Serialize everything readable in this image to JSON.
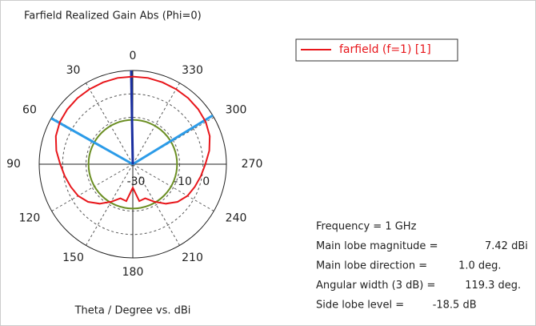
{
  "chart_data": {
    "type": "polar",
    "title": "Farfield Realized Gain Abs (Phi=0)",
    "axis_label": "Theta / Degree vs. dBi",
    "rlim": [
      -30,
      10
    ],
    "rticks": [
      -30,
      -10,
      0
    ],
    "thetaticks": [
      0,
      30,
      60,
      90,
      120,
      150,
      180,
      210,
      240,
      270,
      300,
      330
    ],
    "grid": true,
    "series": [
      {
        "name": "farfield (f=1) [1]",
        "color": "#e8161b",
        "theta": [
          0,
          10,
          20,
          30,
          40,
          50,
          60,
          70,
          80,
          90,
          100,
          110,
          120,
          130,
          140,
          150,
          160,
          170,
          180,
          190,
          200,
          210,
          220,
          230,
          240,
          250,
          260,
          270,
          280,
          290,
          300,
          310,
          320,
          330,
          340,
          350
        ],
        "values": [
          7.4,
          7.4,
          7.2,
          7.0,
          6.8,
          6.5,
          6.0,
          5.0,
          3.2,
          1.0,
          -0.5,
          -1.8,
          -3.0,
          -5.0,
          -8.0,
          -11.5,
          -14.5,
          -14,
          -20,
          -14,
          -14.5,
          -11.5,
          -8.0,
          -5.0,
          -3.0,
          -1.8,
          -0.5,
          1.0,
          3.2,
          5.0,
          6.0,
          6.5,
          6.8,
          7.0,
          7.2,
          7.4
        ]
      }
    ],
    "annotations": [
      {
        "label": "Frequency = 1 GHz"
      },
      {
        "label": "Main lobe magnitude =",
        "value": 7.42,
        "value_label": "7.42 dBi"
      },
      {
        "label": "Main lobe direction =",
        "value": 1.0,
        "value_label": "1.0 deg."
      },
      {
        "label": "Angular width (3 dB) =",
        "value": 119.3,
        "value_label": "119.3 deg."
      },
      {
        "label": "Side lobe level =",
        "value": -18.5,
        "value_label": "-18.5 dB"
      }
    ]
  }
}
